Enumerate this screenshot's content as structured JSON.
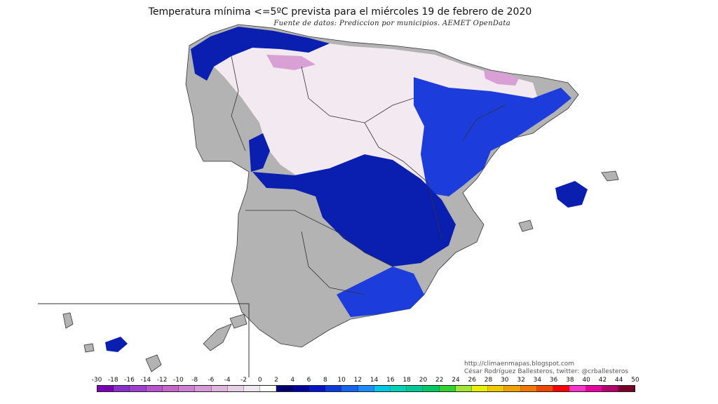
{
  "title": "Temperatura mínima <=5ºC prevista para el miércoles 19 de febrero de 2020",
  "source": "Fuente de datos: Prediccion por municipios. AEMET OpenData",
  "credit": {
    "line1": "http://climaenmapas.blogspot.com",
    "line2": "César Rodríguez Ballesteros, twitter: @crballesteros"
  },
  "legend": {
    "labels": [
      "-30",
      "-18",
      "-16",
      "-14",
      "-12",
      "-10",
      "-8",
      "-6",
      "-4",
      "-2",
      "0",
      "2",
      "4",
      "6",
      "8",
      "10",
      "12",
      "14",
      "16",
      "18",
      "20",
      "22",
      "24",
      "26",
      "28",
      "30",
      "32",
      "34",
      "36",
      "38",
      "40",
      "42",
      "44",
      "50"
    ],
    "colors": [
      "#7a00b8",
      "#8b2fc9",
      "#a040cf",
      "#b755cf",
      "#c467c8",
      "#cf7fcf",
      "#d69ad6",
      "#dcb4dc",
      "#e6d0e6",
      "#efe7ef",
      "#ffffff",
      "#00006e",
      "#00009c",
      "#0014c8",
      "#0a3cdc",
      "#1464f0",
      "#1e8cff",
      "#00c8e6",
      "#00d2b4",
      "#00c896",
      "#00c864",
      "#32d232",
      "#a0e632",
      "#e6f000",
      "#f0c800",
      "#f0a000",
      "#f07800",
      "#f04600",
      "#ff0000",
      "#ff32c8",
      "#e600a0",
      "#b4006e",
      "#780028"
    ]
  },
  "map": {
    "region_name": "España peninsular, Baleares y Canarias",
    "colors": {
      "no_frost": "#b3b3b3",
      "near_zero": "#f2eaf0",
      "cold": "#0a1fb0",
      "colder": "#1c3cdc",
      "subzero_pink": "#d8a0d4",
      "border": "#333333"
    }
  }
}
